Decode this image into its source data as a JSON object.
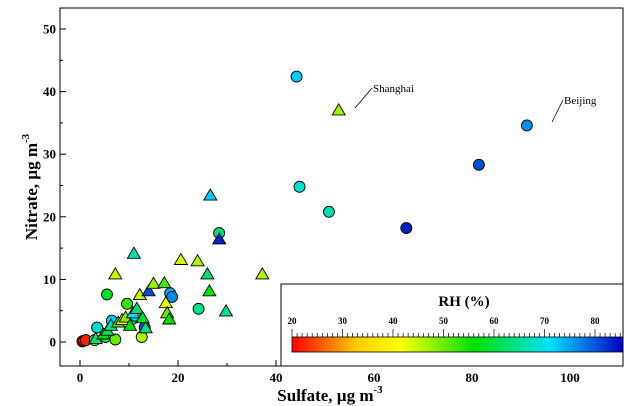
{
  "chart_data": {
    "type": "scatter",
    "xlabel": "Sulfate, µg m",
    "xlabel_sup": "-3",
    "ylabel": "Nitrate, µg m",
    "ylabel_sup": "-3",
    "xlim": [
      0,
      107
    ],
    "ylim": [
      -1,
      52
    ],
    "x_ticks": [
      0,
      20,
      40,
      60,
      80,
      100
    ],
    "y_ticks": [
      0,
      10,
      20,
      30,
      40,
      50
    ],
    "grid": false,
    "colorbar": {
      "title": "RH (%)",
      "range": [
        20,
        85
      ],
      "ticks": [
        20,
        30,
        40,
        50,
        60,
        70,
        80
      ],
      "colormap": [
        "#ff0000",
        "#ffd000",
        "#ffff00",
        "#00e000",
        "#00e0ff",
        "#0000c0"
      ],
      "placement": "bottom-right"
    },
    "annotations": [
      {
        "text": "Shanghai",
        "x": 52.8,
        "y": 37.0
      },
      {
        "text": "Beijing",
        "x": 91.2,
        "y": 34.6
      }
    ],
    "series": [
      {
        "marker": "circle",
        "points": [
          {
            "x": 0.5,
            "y": 0.1,
            "rh": 21
          },
          {
            "x": 0.8,
            "y": 0.2,
            "rh": 21
          },
          {
            "x": 1.2,
            "y": 0.3,
            "rh": 22
          },
          {
            "x": 3.0,
            "y": 0.3,
            "rh": 50
          },
          {
            "x": 3.5,
            "y": 2.3,
            "rh": 68
          },
          {
            "x": 5.2,
            "y": 0.8,
            "rh": 62
          },
          {
            "x": 5.5,
            "y": 7.6,
            "rh": 58
          },
          {
            "x": 6.5,
            "y": 3.4,
            "rh": 72
          },
          {
            "x": 7.2,
            "y": 0.4,
            "rh": 50
          },
          {
            "x": 9.6,
            "y": 6.1,
            "rh": 53
          },
          {
            "x": 10.5,
            "y": 3.6,
            "rh": 62
          },
          {
            "x": 11.2,
            "y": 4.2,
            "rh": 72
          },
          {
            "x": 12.6,
            "y": 0.8,
            "rh": 46
          },
          {
            "x": 13.2,
            "y": 2.3,
            "rh": 80
          },
          {
            "x": 18.4,
            "y": 7.8,
            "rh": 74
          },
          {
            "x": 18.8,
            "y": 7.2,
            "rh": 76
          },
          {
            "x": 24.2,
            "y": 5.3,
            "rh": 64
          },
          {
            "x": 28.4,
            "y": 17.4,
            "rh": 63
          },
          {
            "x": 44.2,
            "y": 42.4,
            "rh": 72
          },
          {
            "x": 44.8,
            "y": 24.8,
            "rh": 68
          },
          {
            "x": 50.8,
            "y": 20.8,
            "rh": 66
          },
          {
            "x": 66.6,
            "y": 18.2,
            "rh": 83
          },
          {
            "x": 81.4,
            "y": 28.3,
            "rh": 80
          },
          {
            "x": 91.2,
            "y": 34.6,
            "rh": 76
          }
        ]
      },
      {
        "marker": "triangle",
        "points": [
          {
            "x": 3.2,
            "y": 0.5,
            "rh": 63
          },
          {
            "x": 4.8,
            "y": 1.2,
            "rh": 56
          },
          {
            "x": 5.6,
            "y": 1.8,
            "rh": 60
          },
          {
            "x": 6.3,
            "y": 2.6,
            "rh": 65
          },
          {
            "x": 7.2,
            "y": 10.8,
            "rh": 45
          },
          {
            "x": 7.8,
            "y": 3.1,
            "rh": 52
          },
          {
            "x": 8.6,
            "y": 3.5,
            "rh": 40
          },
          {
            "x": 9.3,
            "y": 3.9,
            "rh": 48
          },
          {
            "x": 10.2,
            "y": 2.6,
            "rh": 56
          },
          {
            "x": 10.8,
            "y": 4.6,
            "rh": 70
          },
          {
            "x": 11.0,
            "y": 14.1,
            "rh": 66
          },
          {
            "x": 11.6,
            "y": 5.3,
            "rh": 62
          },
          {
            "x": 12.2,
            "y": 7.5,
            "rh": 45
          },
          {
            "x": 12.8,
            "y": 3.8,
            "rh": 58
          },
          {
            "x": 13.4,
            "y": 2.2,
            "rh": 63
          },
          {
            "x": 14.0,
            "y": 8.1,
            "rh": 80
          },
          {
            "x": 15.0,
            "y": 9.3,
            "rh": 47
          },
          {
            "x": 17.2,
            "y": 9.4,
            "rh": 52
          },
          {
            "x": 17.5,
            "y": 6.2,
            "rh": 42
          },
          {
            "x": 17.8,
            "y": 4.6,
            "rh": 50
          },
          {
            "x": 18.2,
            "y": 3.6,
            "rh": 56
          },
          {
            "x": 20.6,
            "y": 13.1,
            "rh": 44
          },
          {
            "x": 24.0,
            "y": 12.9,
            "rh": 46
          },
          {
            "x": 26.0,
            "y": 10.8,
            "rh": 62
          },
          {
            "x": 26.4,
            "y": 8.1,
            "rh": 56
          },
          {
            "x": 26.6,
            "y": 23.4,
            "rh": 72
          },
          {
            "x": 28.4,
            "y": 16.4,
            "rh": 83
          },
          {
            "x": 29.8,
            "y": 4.9,
            "rh": 64
          },
          {
            "x": 37.2,
            "y": 10.8,
            "rh": 46
          },
          {
            "x": 52.8,
            "y": 37.0,
            "rh": 47
          }
        ]
      }
    ]
  }
}
